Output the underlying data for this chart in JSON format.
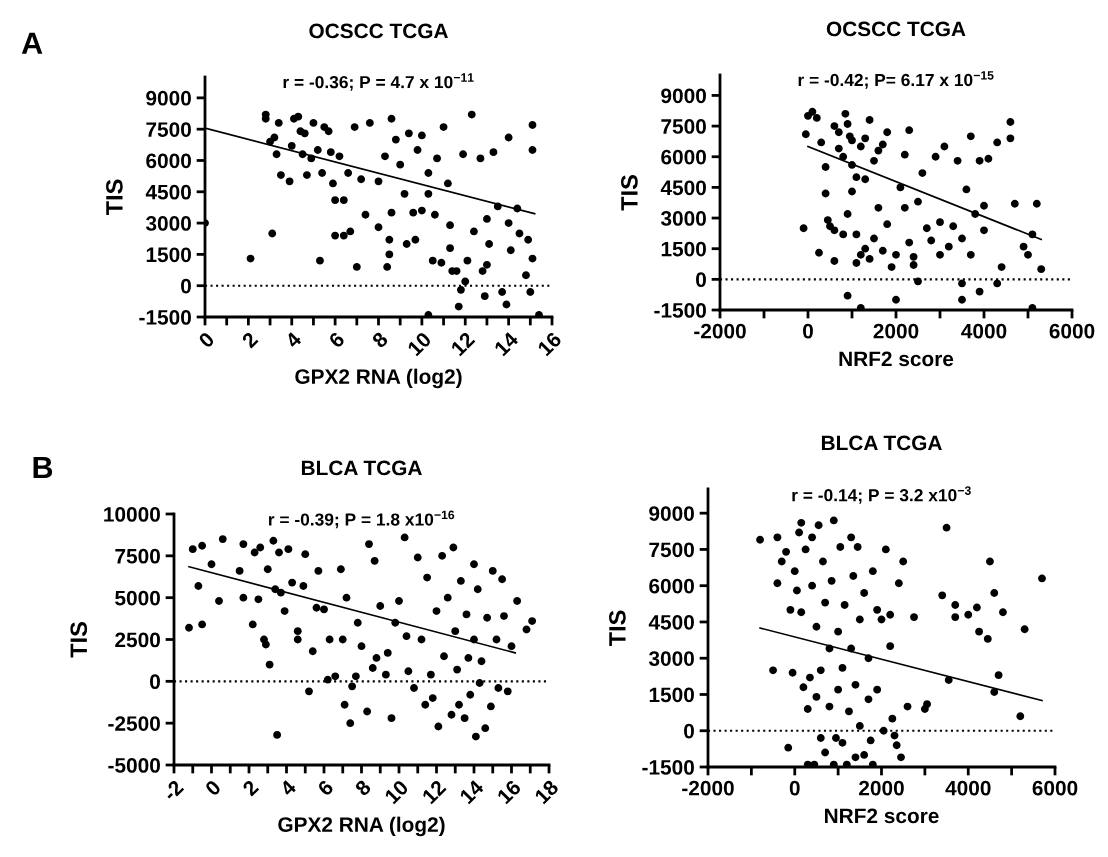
{
  "chart_data": [
    {
      "type": "scatter",
      "title": "OCSCC TCGA",
      "subtitle": "r = -0.36; P = 4.7 x 10$^{−11}$",
      "xlabel": "GPX2 RNA (log2)",
      "ylabel": "TIS",
      "annotations": [
        "A"
      ],
      "grid": false,
      "xlim": [
        0,
        16
      ],
      "ylim": [
        -1500,
        10000
      ],
      "xticks": [
        0,
        {
          "value": 1,
          "label": null
        },
        2,
        {
          "value": 3,
          "label": null
        },
        4,
        {
          "value": 5,
          "label": null
        },
        6,
        {
          "value": 7,
          "label": null
        },
        8,
        {
          "value": 9,
          "label": null
        },
        10,
        {
          "value": 11,
          "label": null
        },
        12,
        {
          "value": 13,
          "label": null
        },
        14,
        {
          "value": 15,
          "label": null
        },
        16
      ],
      "yticks": [
        -1500,
        0,
        1500,
        3000,
        4500,
        6000,
        7500,
        9000
      ],
      "ref_lines": [
        {
          "axis": "y",
          "value": 0,
          "color": "#000000",
          "line_style": "dotted"
        }
      ],
      "series": [
        {
          "marker": "circle",
          "color": "#000000",
          "x": [
            0,
            2.1,
            3.1,
            2.8,
            2.8,
            3,
            3.2,
            3.3,
            3.4,
            3.5,
            3.9,
            4,
            4.1,
            4.3,
            4.4,
            4.5,
            4.6,
            4.7,
            4.9,
            5,
            5.2,
            5.3,
            5.4,
            5.5,
            5.7,
            5.8,
            5.9,
            6,
            6,
            6.2,
            6.4,
            6.4,
            6.6,
            6.7,
            6.9,
            7,
            7.2,
            7.4,
            7.6,
            8,
            8,
            8.3,
            8.4,
            8.5,
            8.5,
            8.6,
            8.6,
            8.8,
            9,
            9.2,
            9.3,
            9.4,
            9.6,
            9.7,
            9.8,
            10,
            10,
            10.3,
            10.3,
            10.3,
            10.5,
            10.6,
            10.7,
            10.9,
            11,
            11.2,
            11.3,
            11.3,
            11.4,
            11.6,
            11.7,
            11.8,
            11.9,
            12,
            12.1,
            12.3,
            12.4,
            12.7,
            12.8,
            12.9,
            13,
            13,
            13.1,
            13.3,
            13.5,
            13.7,
            13.9,
            14,
            14,
            14.1,
            14.4,
            14.5,
            14.8,
            14.9,
            15,
            15.1,
            15.1,
            15.1,
            15.4
          ],
          "values": [
            3000,
            1300,
            2500,
            8200,
            8000,
            6900,
            7100,
            6300,
            7800,
            5300,
            5000,
            6700,
            8000,
            8100,
            7400,
            6300,
            7300,
            5300,
            6100,
            7800,
            6500,
            1200,
            5400,
            7600,
            7400,
            6400,
            4900,
            4100,
            2400,
            6200,
            4100,
            2400,
            5400,
            2600,
            7600,
            900,
            5100,
            3400,
            7800,
            2800,
            5000,
            6200,
            900,
            2200,
            1500,
            8000,
            3500,
            7000,
            5800,
            4400,
            2000,
            7300,
            3500,
            2200,
            6500,
            7200,
            3600,
            4400,
            5400,
            -1400,
            1200,
            3400,
            6100,
            1100,
            7600,
            4900,
            2900,
            1800,
            700,
            700,
            -1000,
            -200,
            6300,
            200,
            1200,
            8200,
            2600,
            6100,
            700,
            -500,
            3200,
            1000,
            2000,
            6400,
            3800,
            -300,
            -900,
            7100,
            3000,
            1700,
            3700,
            2500,
            500,
            2200,
            -300,
            7700,
            6500,
            1300,
            -1400
          ]
        },
        {
          "type": "line",
          "color": "#000000",
          "x": [
            0,
            15.2
          ],
          "values": [
            7550,
            3450
          ]
        }
      ]
    },
    {
      "type": "scatter",
      "title": "OCSCC TCGA",
      "subtitle": "r = -0.42; P= 6.17 x 10$^{−15}$",
      "xlabel": "NRF2 score",
      "ylabel": "TIS",
      "grid": false,
      "xlim": [
        -2000,
        6000
      ],
      "ylim": [
        -1500,
        10000
      ],
      "xticks": [
        -2000,
        {
          "value": -1000,
          "label": null
        },
        0,
        {
          "value": 1000,
          "label": null
        },
        2000,
        {
          "value": 3000,
          "label": null
        },
        4000,
        {
          "value": 5000,
          "label": null
        },
        6000
      ],
      "yticks": [
        -1500,
        0,
        1500,
        3000,
        4500,
        6000,
        7500,
        9000
      ],
      "ref_lines": [
        {
          "axis": "y",
          "value": 0,
          "color": "#000000",
          "line_style": "dotted"
        }
      ],
      "series": [
        {
          "marker": "circle",
          "color": "#000000",
          "x": [
            0,
            100,
            200,
            -50,
            -100,
            250,
            300,
            400,
            400,
            450,
            500,
            600,
            600,
            600,
            700,
            800,
            800,
            850,
            900,
            900,
            950,
            1000,
            1000,
            1100,
            1100,
            1200,
            1200,
            1200,
            1300,
            1300,
            1400,
            1400,
            1500,
            1600,
            1600,
            1700,
            1800,
            1800,
            1900,
            2000,
            2000,
            2100,
            2200,
            2200,
            2300,
            2300,
            2400,
            2400,
            2500,
            2500,
            2600,
            2700,
            2800,
            2900,
            3000,
            3000,
            3100,
            3200,
            3300,
            3400,
            3500,
            3500,
            3500,
            3600,
            3700,
            3700,
            3800,
            3900,
            3900,
            4000,
            4000,
            4100,
            4300,
            4300,
            4400,
            4600,
            4600,
            4700,
            4900,
            5000,
            5100,
            5100,
            5200,
            5300,
            700,
            900,
            1000,
            1100,
            1300,
            1500,
            1700
          ],
          "values": [
            8000,
            8200,
            7900,
            7100,
            2500,
            1300,
            6700,
            5500,
            4200,
            2900,
            2600,
            2400,
            900,
            7500,
            6400,
            6000,
            2200,
            8100,
            -800,
            3200,
            7000,
            5600,
            4300,
            800,
            2200,
            -1400,
            1200,
            6500,
            1500,
            4900,
            7800,
            1000,
            2000,
            3500,
            6300,
            1400,
            2700,
            7200,
            600,
            1200,
            -1000,
            4500,
            6100,
            3500,
            7300,
            1800,
            700,
            1100,
            -100,
            3800,
            5200,
            2500,
            1900,
            6000,
            1200,
            2800,
            6500,
            1600,
            2600,
            5800,
            -1000,
            2000,
            -200,
            4400,
            7000,
            1200,
            3200,
            -600,
            5800,
            3600,
            2400,
            5900,
            6700,
            -200,
            600,
            7700,
            6900,
            3700,
            1600,
            1200,
            2200,
            -1400,
            3700,
            500,
            7200,
            7600,
            6800,
            5000,
            6900,
            5800,
            6600
          ]
        },
        {
          "type": "line",
          "color": "#000000",
          "x": [
            0,
            5300
          ],
          "values": [
            6500,
            1950
          ]
        }
      ]
    },
    {
      "type": "scatter",
      "title": "BLCA TCGA",
      "subtitle": "r = -0.39; P = 1.8 x10$^{−16}$",
      "xlabel": "GPX2 RNA (log2)",
      "ylabel": "TIS",
      "annotations": [
        "B"
      ],
      "grid": false,
      "xlim": [
        -2,
        18
      ],
      "ylim": [
        -5000,
        10000
      ],
      "xticks": [
        -2,
        {
          "value": -1,
          "label": null
        },
        0,
        {
          "value": 1,
          "label": null
        },
        2,
        {
          "value": 3,
          "label": null
        },
        4,
        {
          "value": 5,
          "label": null
        },
        6,
        {
          "value": 7,
          "label": null
        },
        8,
        {
          "value": 9,
          "label": null
        },
        10,
        {
          "value": 11,
          "label": null
        },
        12,
        {
          "value": 13,
          "label": null
        },
        14,
        {
          "value": 15,
          "label": null
        },
        16,
        {
          "value": 17,
          "label": null
        },
        18
      ],
      "yticks": [
        -5000,
        -2500,
        0,
        2500,
        5000,
        7500,
        10000
      ],
      "ref_lines": [
        {
          "axis": "y",
          "value": 0,
          "color": "#000000",
          "line_style": "dotted"
        }
      ],
      "series": [
        {
          "marker": "circle",
          "color": "#000000",
          "x": [
            -1.2,
            -1,
            -0.7,
            -0.5,
            -0.5,
            0,
            0.4,
            0.6,
            1.5,
            1.7,
            1.7,
            2.2,
            2.3,
            2.5,
            2.6,
            2.8,
            2.9,
            3,
            3.1,
            3.3,
            3.4,
            3.5,
            3.6,
            3.7,
            3.9,
            4.1,
            4.3,
            4.6,
            4.6,
            4.9,
            5,
            5.2,
            5.4,
            5.6,
            5.7,
            6,
            6.2,
            6.3,
            6.6,
            6.9,
            7,
            7.1,
            7.2,
            7.4,
            7.5,
            7.7,
            7.8,
            8,
            8.3,
            8.4,
            8.6,
            8.7,
            8.8,
            9,
            9.3,
            9.4,
            9.6,
            9.8,
            10,
            10.3,
            10.4,
            10.5,
            10.8,
            11,
            11.2,
            11.4,
            11.5,
            11.7,
            11.8,
            12,
            12.1,
            12.3,
            12.4,
            12.6,
            12.8,
            12.9,
            13,
            13.1,
            13.2,
            13.3,
            13.5,
            13.6,
            13.7,
            13.8,
            14,
            14,
            14.1,
            14.2,
            14.3,
            14.4,
            14.6,
            14.7,
            14.9,
            15,
            15.2,
            15.3,
            15.5,
            15.6,
            15.8,
            16,
            16.3,
            16.8,
            17.1
          ],
          "values": [
            3200,
            7900,
            5700,
            8100,
            3400,
            7000,
            4800,
            8500,
            6600,
            8200,
            5000,
            3400,
            7700,
            4900,
            8000,
            2500,
            2200,
            6700,
            1000,
            8400,
            5500,
            -3200,
            7700,
            5300,
            4200,
            7900,
            5900,
            2500,
            3000,
            5700,
            7600,
            -600,
            1800,
            4400,
            6600,
            4300,
            100,
            2500,
            300,
            6700,
            2500,
            -1400,
            5000,
            -2500,
            -300,
            300,
            3500,
            2100,
            -1800,
            8200,
            800,
            7200,
            1400,
            4500,
            400,
            1700,
            -2200,
            3500,
            4800,
            8600,
            2700,
            600,
            -400,
            7400,
            2500,
            -1400,
            6200,
            400,
            -1000,
            4200,
            -2700,
            7500,
            1500,
            5000,
            -2000,
            8000,
            3000,
            700,
            -1400,
            6000,
            -2200,
            4000,
            1400,
            -800,
            7000,
            2500,
            -3300,
            5500,
            -100,
            1200,
            -2800,
            3800,
            -1500,
            6600,
            2500,
            -400,
            6100,
            3900,
            -600,
            2100,
            4800,
            3100,
            3600
          ]
        },
        {
          "type": "line",
          "color": "#000000",
          "x": [
            -1.2,
            16.2
          ],
          "values": [
            6850,
            1700
          ]
        }
      ]
    },
    {
      "type": "scatter",
      "title": "BLCA TCGA",
      "subtitle": "r = -0.14; P = 3.2 x10$^{−3}$",
      "xlabel": "NRF2 score",
      "ylabel": "TIS",
      "grid": false,
      "xlim": [
        -2000,
        6000
      ],
      "ylim": [
        -1500,
        10000
      ],
      "xticks": [
        -2000,
        {
          "value": -1000,
          "label": null
        },
        0,
        {
          "value": 1000,
          "label": null
        },
        2000,
        {
          "value": 3000,
          "label": null
        },
        4000,
        {
          "value": 5000,
          "label": null
        },
        6000
      ],
      "yticks": [
        -1500,
        0,
        1500,
        3000,
        4500,
        6000,
        7500,
        9000
      ],
      "ref_lines": [
        {
          "axis": "y",
          "value": 0,
          "color": "#000000",
          "line_style": "dotted"
        }
      ],
      "series": [
        {
          "marker": "circle",
          "color": "#000000",
          "x": [
            -800,
            -500,
            -400,
            -400,
            -300,
            -200,
            -150,
            -100,
            -50,
            0,
            50,
            100,
            150,
            150,
            200,
            250,
            300,
            300,
            350,
            400,
            400,
            450,
            500,
            500,
            550,
            600,
            600,
            650,
            700,
            700,
            800,
            800,
            850,
            900,
            900,
            950,
            1000,
            1000,
            1050,
            1100,
            1100,
            1150,
            1200,
            1250,
            1300,
            1300,
            1350,
            1400,
            1400,
            1450,
            1500,
            1500,
            1600,
            1600,
            1700,
            1700,
            1750,
            1800,
            1800,
            1900,
            1900,
            2000,
            2050,
            2100,
            2200,
            2200,
            2250,
            2300,
            2350,
            2400,
            2450,
            2500,
            2600,
            2750,
            3000,
            3050,
            3400,
            3500,
            3550,
            3700,
            3700,
            4000,
            4200,
            4250,
            4450,
            4500,
            4600,
            4600,
            4700,
            4800,
            5200,
            5300,
            5700
          ],
          "values": [
            7900,
            2500,
            8000,
            6100,
            7000,
            7400,
            -700,
            5000,
            2400,
            6600,
            5800,
            8200,
            8600,
            4900,
            1800,
            7500,
            -1400,
            900,
            2200,
            6000,
            8000,
            -1400,
            4300,
            1400,
            8500,
            -300,
            2500,
            7000,
            -900,
            5300,
            1000,
            3400,
            6200,
            8700,
            -1400,
            -300,
            4100,
            1700,
            7600,
            -500,
            2600,
            5200,
            -1400,
            800,
            8000,
            3400,
            6400,
            1900,
            -1100,
            7600,
            4600,
            200,
            5700,
            -1000,
            3000,
            1300,
            -400,
            6600,
            -1400,
            5000,
            1700,
            4600,
            0,
            7500,
            4800,
            3500,
            500,
            -200,
            -600,
            6100,
            -1100,
            7000,
            1000,
            4700,
            900,
            1100,
            5600,
            8400,
            2100,
            4700,
            5200,
            4800,
            5100,
            4100,
            3800,
            7000,
            5700,
            1600,
            2300,
            4900,
            600,
            4200,
            6300
          ]
        },
        {
          "type": "line",
          "color": "#000000",
          "x": [
            -800,
            5700
          ],
          "values": [
            4250,
            1250
          ]
        }
      ]
    }
  ]
}
